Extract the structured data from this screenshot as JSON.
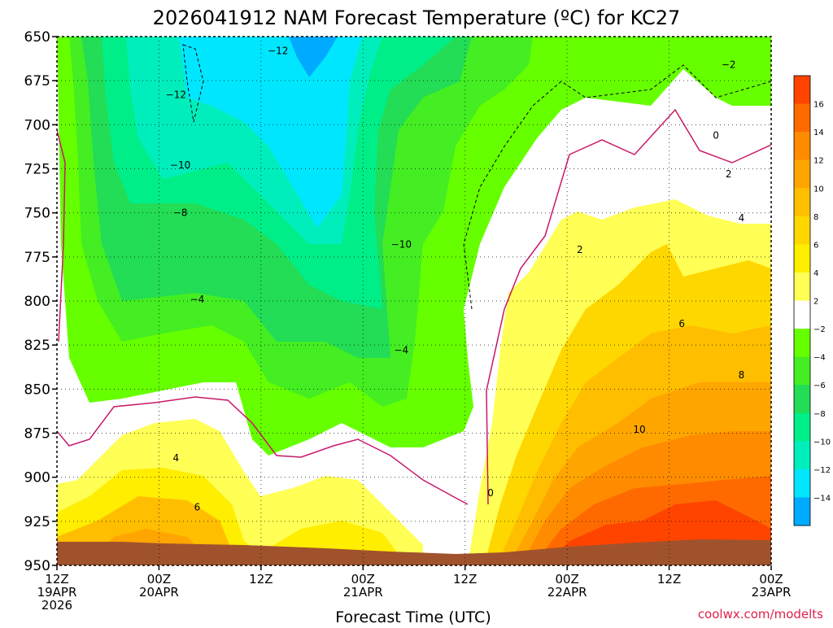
{
  "title": "2026041912 NAM Forecast Temperature (ºC) for KC27",
  "credit": "coolwx.com/modelts",
  "chart_data": {
    "type": "time-height contour",
    "title": "2026041912 NAM Forecast Temperature (ºC) for KC27",
    "xlabel": "Forecast Time (UTC)",
    "ylabel": "",
    "y_levels": [
      "650",
      "675",
      "700",
      "725",
      "750",
      "775",
      "800",
      "825",
      "850",
      "875",
      "900",
      "925",
      "950"
    ],
    "x_ticks": [
      {
        "hour": 0,
        "line1": "12Z",
        "line2": "19APR",
        "line3": "2026"
      },
      {
        "hour": 12,
        "line1": "00Z",
        "line2": "20APR",
        "line3": ""
      },
      {
        "hour": 24,
        "line1": "12Z",
        "line2": "",
        "line3": ""
      },
      {
        "hour": 36,
        "line1": "00Z",
        "line2": "21APR",
        "line3": ""
      },
      {
        "hour": 48,
        "line1": "12Z",
        "line2": "",
        "line3": ""
      },
      {
        "hour": 60,
        "line1": "00Z",
        "line2": "22APR",
        "line3": ""
      },
      {
        "hour": 72,
        "line1": "12Z",
        "line2": "",
        "line3": ""
      },
      {
        "hour": 84,
        "line1": "00Z",
        "line2": "23APR",
        "line3": ""
      }
    ],
    "xlim": [
      0,
      84
    ],
    "ylim": [
      650,
      950
    ],
    "grid": true,
    "colorbar": [
      {
        "value": 16,
        "label": "16",
        "color": "#ff4400"
      },
      {
        "value": 14,
        "label": "14",
        "color": "#ff6a00"
      },
      {
        "value": 12,
        "label": "12",
        "color": "#ff8c00"
      },
      {
        "value": 10,
        "label": "10",
        "color": "#ffa500"
      },
      {
        "value": 8,
        "label": "8",
        "color": "#ffbe00"
      },
      {
        "value": 6,
        "label": "6",
        "color": "#ffd700"
      },
      {
        "value": 4,
        "label": "4",
        "color": "#ffee00"
      },
      {
        "value": 2,
        "label": "2",
        "color": "#ffff55"
      },
      {
        "value": -2,
        "label": "−2",
        "color": "#ffffff"
      },
      {
        "value": -4,
        "label": "−4",
        "color": "#66ff00"
      },
      {
        "value": -6,
        "label": "−6",
        "color": "#44ee22"
      },
      {
        "value": -8,
        "label": "−8",
        "color": "#22dd55"
      },
      {
        "value": -10,
        "label": "−10",
        "color": "#00ee88"
      },
      {
        "value": -12,
        "label": "−12",
        "color": "#00eebb"
      },
      {
        "value": -14,
        "label": "−14",
        "color": "#00e6ff"
      },
      {
        "value": -16,
        "label": "",
        "color": "#00aaff"
      }
    ],
    "contour_labels": [
      {
        "text": "−12",
        "hour": 14,
        "level": 683
      },
      {
        "text": "−12",
        "hour": 26,
        "level": 658
      },
      {
        "text": "−10",
        "hour": 14.5,
        "level": 723
      },
      {
        "text": "−8",
        "hour": 14.5,
        "level": 750
      },
      {
        "text": "−4",
        "hour": 16.5,
        "level": 799
      },
      {
        "text": "−10",
        "hour": 40.5,
        "level": 768
      },
      {
        "text": "−4",
        "hour": 40.5,
        "level": 828
      },
      {
        "text": "−2",
        "hour": 79,
        "level": 666
      },
      {
        "text": "0",
        "hour": 77.5,
        "level": 706
      },
      {
        "text": "2",
        "hour": 61.5,
        "level": 771
      },
      {
        "text": "2",
        "hour": 79,
        "level": 728
      },
      {
        "text": "4",
        "hour": 80.5,
        "level": 753
      },
      {
        "text": "6",
        "hour": 73.5,
        "level": 813
      },
      {
        "text": "8",
        "hour": 80.5,
        "level": 842
      },
      {
        "text": "10",
        "hour": 68.5,
        "level": 873
      },
      {
        "text": "4",
        "hour": 14,
        "level": 889
      },
      {
        "text": "6",
        "hour": 16.5,
        "level": 917
      },
      {
        "text": "0",
        "hour": 51,
        "level": 909
      }
    ]
  }
}
